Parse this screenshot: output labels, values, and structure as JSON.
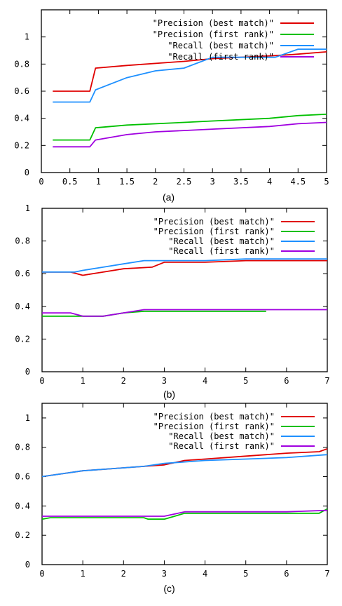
{
  "chart_data": [
    {
      "type": "line",
      "caption": "(a)",
      "xlim": [
        0,
        5
      ],
      "ylim": [
        0,
        1.2
      ],
      "xticks": [
        0,
        0.5,
        1,
        1.5,
        2,
        2.5,
        3,
        3.5,
        4,
        4.5,
        5
      ],
      "yticks": [
        0,
        0.2,
        0.4,
        0.6,
        0.8,
        1
      ],
      "grid": false,
      "legend": "top-right",
      "series": [
        {
          "name": "\"Precision (best match)\"",
          "color": "#e00000",
          "points": [
            [
              0.2,
              0.6
            ],
            [
              0.85,
              0.6
            ],
            [
              0.95,
              0.77
            ],
            [
              1.5,
              0.79
            ],
            [
              2.5,
              0.82
            ],
            [
              3,
              0.84
            ],
            [
              4,
              0.86
            ],
            [
              4.4,
              0.87
            ],
            [
              5,
              0.89
            ]
          ]
        },
        {
          "name": "\"Precision (first rank)\"",
          "color": "#00c000",
          "points": [
            [
              0.2,
              0.24
            ],
            [
              0.85,
              0.24
            ],
            [
              0.95,
              0.33
            ],
            [
              1.5,
              0.35
            ],
            [
              2.5,
              0.37
            ],
            [
              3,
              0.38
            ],
            [
              4,
              0.4
            ],
            [
              4.5,
              0.42
            ],
            [
              5,
              0.43
            ]
          ]
        },
        {
          "name": "\"Recall (best match)\"",
          "color": "#1e90ff",
          "points": [
            [
              0.2,
              0.52
            ],
            [
              0.85,
              0.52
            ],
            [
              0.95,
              0.61
            ],
            [
              1.5,
              0.7
            ],
            [
              2,
              0.75
            ],
            [
              2.5,
              0.77
            ],
            [
              3,
              0.85
            ],
            [
              4.1,
              0.85
            ],
            [
              4.5,
              0.91
            ],
            [
              5,
              0.91
            ]
          ]
        },
        {
          "name": "\"Recall (first rank)\"",
          "color": "#a000e0",
          "points": [
            [
              0.2,
              0.19
            ],
            [
              0.85,
              0.19
            ],
            [
              0.95,
              0.24
            ],
            [
              1.5,
              0.28
            ],
            [
              2,
              0.3
            ],
            [
              2.5,
              0.31
            ],
            [
              3,
              0.32
            ],
            [
              4,
              0.34
            ],
            [
              4.5,
              0.36
            ],
            [
              5,
              0.37
            ]
          ]
        }
      ]
    },
    {
      "type": "line",
      "caption": "(b)",
      "xlim": [
        0,
        7
      ],
      "ylim": [
        0,
        1
      ],
      "xticks": [
        0,
        1,
        2,
        3,
        4,
        5,
        6,
        7
      ],
      "yticks": [
        0,
        0.2,
        0.4,
        0.6,
        0.8,
        1
      ],
      "grid": false,
      "legend": "top-right",
      "series": [
        {
          "name": "\"Precision (best match)\"",
          "color": "#e00000",
          "points": [
            [
              0,
              0.61
            ],
            [
              0.7,
              0.61
            ],
            [
              1,
              0.59
            ],
            [
              1.5,
              0.61
            ],
            [
              2,
              0.63
            ],
            [
              2.7,
              0.64
            ],
            [
              3,
              0.67
            ],
            [
              4,
              0.67
            ],
            [
              5,
              0.68
            ],
            [
              6,
              0.68
            ],
            [
              7,
              0.68
            ]
          ]
        },
        {
          "name": "\"Precision (first rank)\"",
          "color": "#00c000",
          "points": [
            [
              0,
              0.34
            ],
            [
              0.8,
              0.34
            ],
            [
              1,
              0.34
            ],
            [
              1.5,
              0.34
            ],
            [
              2,
              0.36
            ],
            [
              2.5,
              0.37
            ],
            [
              3,
              0.37
            ],
            [
              5.5,
              0.37
            ]
          ]
        },
        {
          "name": "\"Recall (best match)\"",
          "color": "#1e90ff",
          "points": [
            [
              0,
              0.61
            ],
            [
              0.8,
              0.61
            ],
            [
              1,
              0.62
            ],
            [
              1.5,
              0.64
            ],
            [
              2,
              0.66
            ],
            [
              2.5,
              0.68
            ],
            [
              3,
              0.68
            ],
            [
              4,
              0.68
            ],
            [
              5,
              0.69
            ],
            [
              6,
              0.69
            ],
            [
              7,
              0.69
            ]
          ]
        },
        {
          "name": "\"Recall (first rank)\"",
          "color": "#a000e0",
          "points": [
            [
              0,
              0.36
            ],
            [
              0.7,
              0.36
            ],
            [
              1,
              0.34
            ],
            [
              1.5,
              0.34
            ],
            [
              2,
              0.36
            ],
            [
              2.5,
              0.38
            ],
            [
              3,
              0.38
            ],
            [
              4,
              0.38
            ],
            [
              5,
              0.38
            ],
            [
              6,
              0.38
            ],
            [
              7,
              0.38
            ]
          ]
        }
      ]
    },
    {
      "type": "line",
      "caption": "(c)",
      "xlim": [
        0,
        7
      ],
      "ylim": [
        0,
        1.1
      ],
      "xticks": [
        0,
        1,
        2,
        3,
        4,
        5,
        6,
        7
      ],
      "yticks": [
        0,
        0.2,
        0.4,
        0.6,
        0.8,
        1
      ],
      "grid": false,
      "legend": "top-right",
      "series": [
        {
          "name": "\"Precision (best match)\"",
          "color": "#e00000",
          "points": [
            [
              0,
              0.6
            ],
            [
              0.5,
              0.62
            ],
            [
              1,
              0.64
            ],
            [
              1.5,
              0.65
            ],
            [
              2,
              0.66
            ],
            [
              2.5,
              0.67
            ],
            [
              3,
              0.68
            ],
            [
              3.5,
              0.71
            ],
            [
              4,
              0.72
            ],
            [
              5,
              0.74
            ],
            [
              6,
              0.76
            ],
            [
              6.8,
              0.77
            ],
            [
              7,
              0.79
            ]
          ]
        },
        {
          "name": "\"Precision (first rank)\"",
          "color": "#00c000",
          "points": [
            [
              0,
              0.31
            ],
            [
              0.2,
              0.32
            ],
            [
              1,
              0.32
            ],
            [
              2.5,
              0.32
            ],
            [
              2.6,
              0.31
            ],
            [
              3,
              0.31
            ],
            [
              3.5,
              0.35
            ],
            [
              4,
              0.35
            ],
            [
              5,
              0.35
            ],
            [
              6.8,
              0.35
            ],
            [
              7,
              0.38
            ]
          ]
        },
        {
          "name": "\"Recall (best match)\"",
          "color": "#1e90ff",
          "points": [
            [
              0,
              0.6
            ],
            [
              0.5,
              0.62
            ],
            [
              1,
              0.64
            ],
            [
              1.5,
              0.65
            ],
            [
              2,
              0.66
            ],
            [
              2.5,
              0.67
            ],
            [
              3,
              0.69
            ],
            [
              3.5,
              0.7
            ],
            [
              4,
              0.71
            ],
            [
              5,
              0.72
            ],
            [
              6,
              0.73
            ],
            [
              7,
              0.75
            ]
          ]
        },
        {
          "name": "\"Recall (first rank)\"",
          "color": "#a000e0",
          "points": [
            [
              0,
              0.33
            ],
            [
              1,
              0.33
            ],
            [
              2,
              0.33
            ],
            [
              3,
              0.33
            ],
            [
              3.5,
              0.36
            ],
            [
              4,
              0.36
            ],
            [
              5,
              0.36
            ],
            [
              6,
              0.36
            ],
            [
              7,
              0.37
            ]
          ]
        }
      ]
    }
  ]
}
